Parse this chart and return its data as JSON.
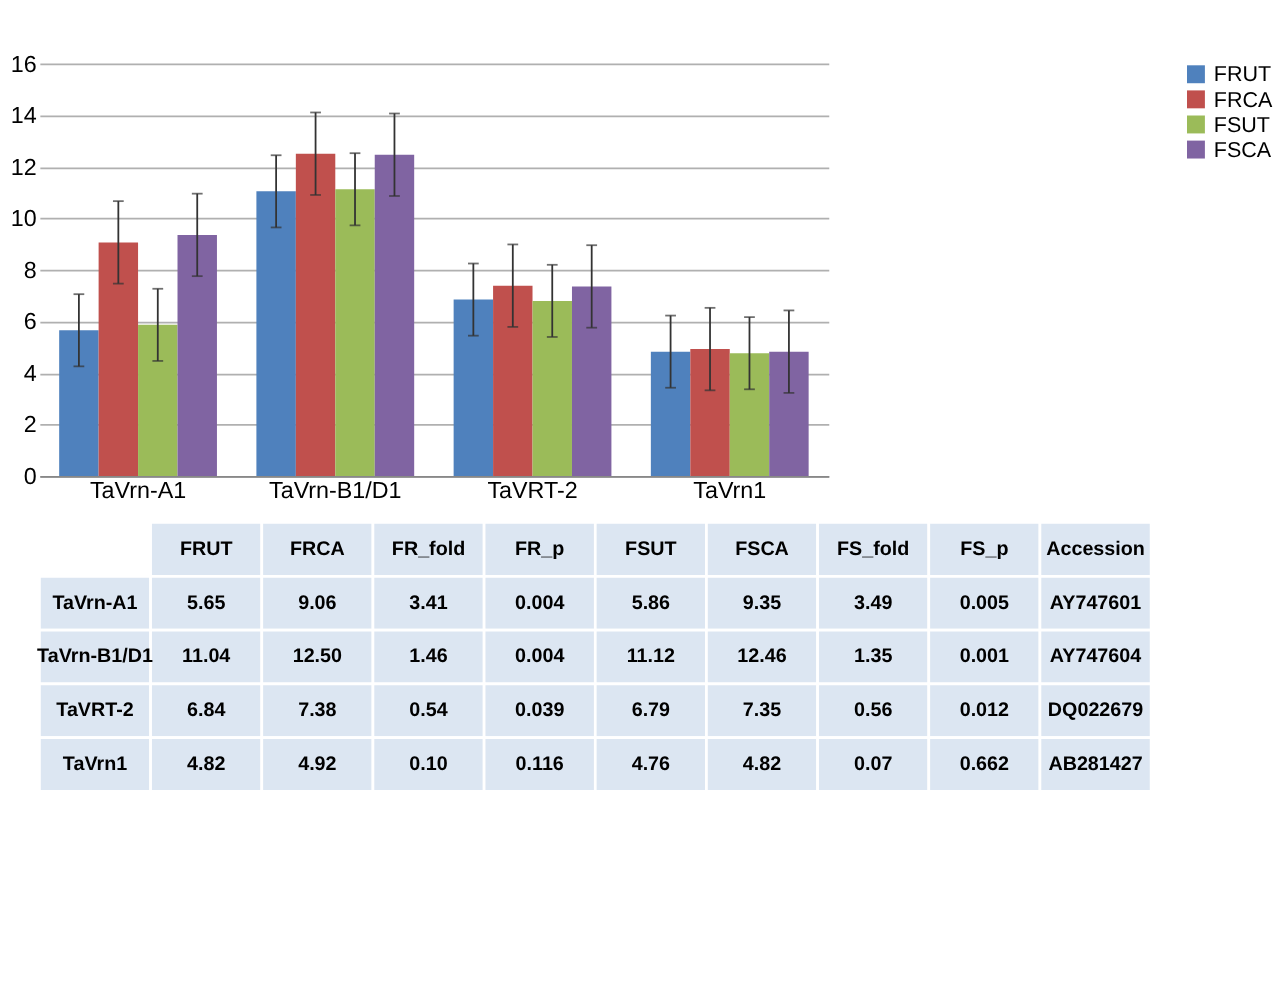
{
  "chart_data": [
    {
      "type": "bar",
      "categories": [
        "TaVrn-A1",
        "TaVrn-B1/D1",
        "TaVRT-2",
        "TaVrn1"
      ],
      "series": [
        {
          "name": "FRUT",
          "color": "#4f81bd",
          "values": [
            5.65,
            11.04,
            6.84,
            4.82
          ],
          "errors": [
            1.4,
            1.4,
            1.4,
            1.4
          ]
        },
        {
          "name": "FRCA",
          "color": "#c0504d",
          "values": [
            9.06,
            12.5,
            7.38,
            4.92
          ],
          "errors": [
            1.6,
            1.6,
            1.6,
            1.6
          ]
        },
        {
          "name": "FSUT",
          "color": "#9bbb59",
          "values": [
            5.86,
            11.12,
            6.79,
            4.76
          ],
          "errors": [
            1.4,
            1.4,
            1.4,
            1.4
          ]
        },
        {
          "name": "FSCA",
          "color": "#8064a2",
          "values": [
            9.35,
            12.46,
            7.35,
            4.82
          ],
          "errors": [
            1.6,
            1.6,
            1.6,
            1.6
          ]
        }
      ],
      "ylim": [
        0,
        16
      ],
      "yticks": [
        0,
        2,
        4,
        6,
        8,
        10,
        12,
        14,
        16
      ],
      "grid": "y",
      "legend": "right"
    },
    {
      "type": "other",
      "categories": [
        null,
        "FRUT",
        "FRCA",
        "FR_fold",
        "FR_p",
        "FSUT",
        "FSCA",
        "FS_fold",
        "FS_p",
        "Accession"
      ],
      "y_categories": [
        "TaVrn-A1",
        "TaVrn-B1/D1",
        "TaVRT-2",
        "TaVrn1"
      ],
      "cell_labels": [
        [
          "5.65",
          "9.06",
          "3.41",
          "0.004",
          "5.86",
          "9.35",
          "3.49",
          "0.005",
          "AY747601"
        ],
        [
          "11.04",
          "12.50",
          "1.46",
          "0.004",
          "11.12",
          "12.46",
          "1.35",
          "0.001",
          "AY747604"
        ],
        [
          "6.84",
          "7.38",
          "0.54",
          "0.039",
          "6.79",
          "7.35",
          "0.56",
          "0.012",
          "DQ022679"
        ],
        [
          "4.82",
          "4.92",
          "0.10",
          "0.116",
          "4.76",
          "4.82",
          "0.07",
          "0.662",
          "AB281427"
        ]
      ]
    }
  ]
}
